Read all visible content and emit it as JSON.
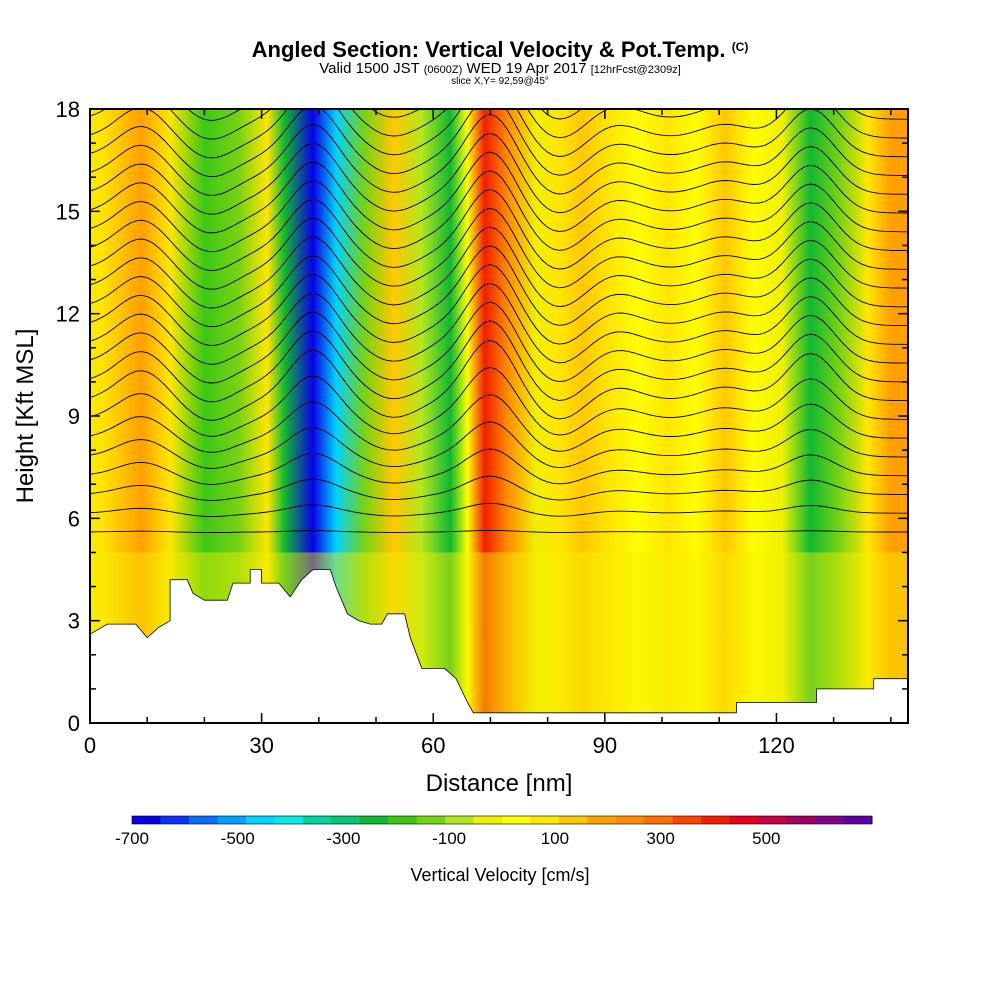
{
  "chart_data": {
    "type": "heatmap",
    "title": "Angled Section: Vertical Velocity & Pot.Temp.",
    "title_mark": "(C)",
    "subtitle_main": "Valid 1500 JST",
    "subtitle_utc": "(0600Z)",
    "subtitle_date": "WED 19 Apr 2017",
    "subtitle_fcst": "[12hrFcst@2309z]",
    "slice_label": "slice X,Y= 92,59@45°",
    "xlabel": "Distance [nm]",
    "ylabel": "Height [Kft MSL]",
    "xlim": [
      0,
      143
    ],
    "ylim": [
      0,
      18
    ],
    "x_ticks": [
      0,
      30,
      60,
      90,
      120
    ],
    "y_ticks": [
      0,
      3,
      6,
      9,
      12,
      15,
      18
    ],
    "colorbar": {
      "label": "Vertical Velocity [cm/s]",
      "tick_labels": [
        "-700",
        "-500",
        "-300",
        "-100",
        "100",
        "300",
        "500"
      ],
      "tick_values": [
        -700,
        -500,
        -300,
        -100,
        100,
        300,
        500
      ],
      "range": [
        -700,
        700
      ],
      "colors": [
        "#0a00e6",
        "#0a32f5",
        "#0a6eff",
        "#00a0ff",
        "#00d2ff",
        "#00ebe6",
        "#00d2a0",
        "#00c873",
        "#10b832",
        "#3cc814",
        "#78d214",
        "#b4e61e",
        "#f0f000",
        "#ffff00",
        "#ffe600",
        "#ffc800",
        "#ffa000",
        "#ff8c00",
        "#ff6e00",
        "#ff4600",
        "#f01e00",
        "#e6001e",
        "#c80046",
        "#a00064",
        "#82008c",
        "#5a00a0"
      ]
    },
    "velocity_bands": [
      {
        "x": 2,
        "v": 70
      },
      {
        "x": 9,
        "v": 170
      },
      {
        "x": 14,
        "v": 80
      },
      {
        "x": 20,
        "v": -200
      },
      {
        "x": 26,
        "v": -120
      },
      {
        "x": 31,
        "v": 60
      },
      {
        "x": 34,
        "v": -250
      },
      {
        "x": 39,
        "v": -650
      },
      {
        "x": 43,
        "v": -450
      },
      {
        "x": 48,
        "v": -150
      },
      {
        "x": 53,
        "v": 110
      },
      {
        "x": 58,
        "v": -60
      },
      {
        "x": 63,
        "v": -220
      },
      {
        "x": 66,
        "v": 40
      },
      {
        "x": 69,
        "v": 380
      },
      {
        "x": 73,
        "v": 230
      },
      {
        "x": 78,
        "v": -40
      },
      {
        "x": 82,
        "v": 90
      },
      {
        "x": 86,
        "v": 150
      },
      {
        "x": 91,
        "v": 60
      },
      {
        "x": 96,
        "v": 20
      },
      {
        "x": 101,
        "v": 100
      },
      {
        "x": 106,
        "v": 50
      },
      {
        "x": 111,
        "v": 130
      },
      {
        "x": 116,
        "v": 40
      },
      {
        "x": 121,
        "v": -30
      },
      {
        "x": 126,
        "v": -250
      },
      {
        "x": 131,
        "v": -120
      },
      {
        "x": 136,
        "v": 90
      },
      {
        "x": 140,
        "v": 170
      }
    ],
    "terrain": [
      [
        0,
        2.6
      ],
      [
        3,
        2.9
      ],
      [
        8,
        2.9
      ],
      [
        10,
        2.5
      ],
      [
        12,
        2.8
      ],
      [
        14,
        3.0
      ],
      [
        14,
        4.2
      ],
      [
        17,
        4.2
      ],
      [
        18,
        3.8
      ],
      [
        20,
        3.6
      ],
      [
        24,
        3.6
      ],
      [
        25,
        4.1
      ],
      [
        28,
        4.1
      ],
      [
        28,
        4.5
      ],
      [
        30,
        4.5
      ],
      [
        30,
        4.1
      ],
      [
        33,
        4.1
      ],
      [
        35,
        3.7
      ],
      [
        37,
        4.2
      ],
      [
        39,
        4.5
      ],
      [
        42,
        4.5
      ],
      [
        43,
        4.0
      ],
      [
        45,
        3.2
      ],
      [
        47,
        3.0
      ],
      [
        49,
        2.9
      ],
      [
        51,
        2.9
      ],
      [
        52,
        3.2
      ],
      [
        55,
        3.2
      ],
      [
        56,
        2.5
      ],
      [
        58,
        1.6
      ],
      [
        62,
        1.6
      ],
      [
        64,
        1.3
      ],
      [
        66,
        0.6
      ],
      [
        67,
        0.3
      ],
      [
        113,
        0.3
      ],
      [
        113,
        0.6
      ],
      [
        127,
        0.6
      ],
      [
        127,
        1.0
      ],
      [
        137,
        1.0
      ],
      [
        137,
        1.3
      ],
      [
        143,
        1.3
      ]
    ],
    "contour_count": 29,
    "series": [
      {
        "name": "Vertical Velocity",
        "unit": "cm/s"
      },
      {
        "name": "Pot.Temp.",
        "unit": "C"
      }
    ]
  }
}
